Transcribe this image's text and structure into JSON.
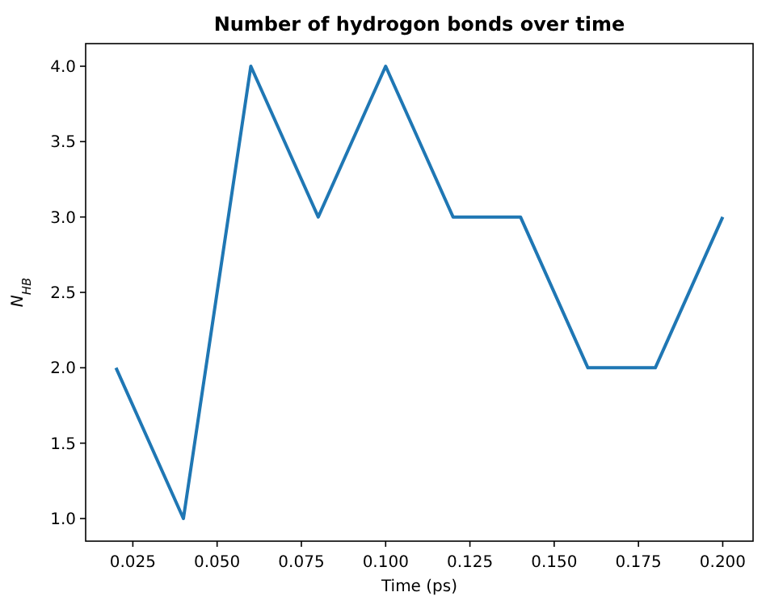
{
  "chart_data": {
    "type": "line",
    "title": "Number of hydrogon bonds over time",
    "xlabel": "Time (ps)",
    "ylabel": "N$_{HB}$",
    "x": [
      0.02,
      0.04,
      0.06,
      0.08,
      0.1,
      0.12,
      0.14,
      0.16,
      0.18,
      0.2
    ],
    "series": [
      {
        "color": "#1f77b4",
        "values": [
          2,
          1,
          4,
          3,
          4,
          3,
          3,
          2,
          2,
          3
        ]
      }
    ],
    "xlim": [
      0.011,
      0.209
    ],
    "ylim": [
      0.85,
      4.15
    ],
    "xticks": [
      {
        "value": 0.025,
        "label": "0.025"
      },
      {
        "value": 0.05,
        "label": "0.050"
      },
      {
        "value": 0.075,
        "label": "0.075"
      },
      {
        "value": 0.1,
        "label": "0.100"
      },
      {
        "value": 0.125,
        "label": "0.125"
      },
      {
        "value": 0.15,
        "label": "0.150"
      },
      {
        "value": 0.175,
        "label": "0.175"
      },
      {
        "value": 0.2,
        "label": "0.200"
      }
    ],
    "yticks": [
      {
        "value": 1,
        "label": "1.0"
      },
      {
        "value": 1.5,
        "label": "1.5"
      },
      {
        "value": 2,
        "label": "2.0"
      },
      {
        "value": 2.5,
        "label": "2.5"
      },
      {
        "value": 3,
        "label": "3.0"
      },
      {
        "value": 3.5,
        "label": "3.5"
      },
      {
        "value": 4,
        "label": "4.0"
      }
    ],
    "grid": false,
    "marker": "none",
    "line_style": "solid"
  }
}
